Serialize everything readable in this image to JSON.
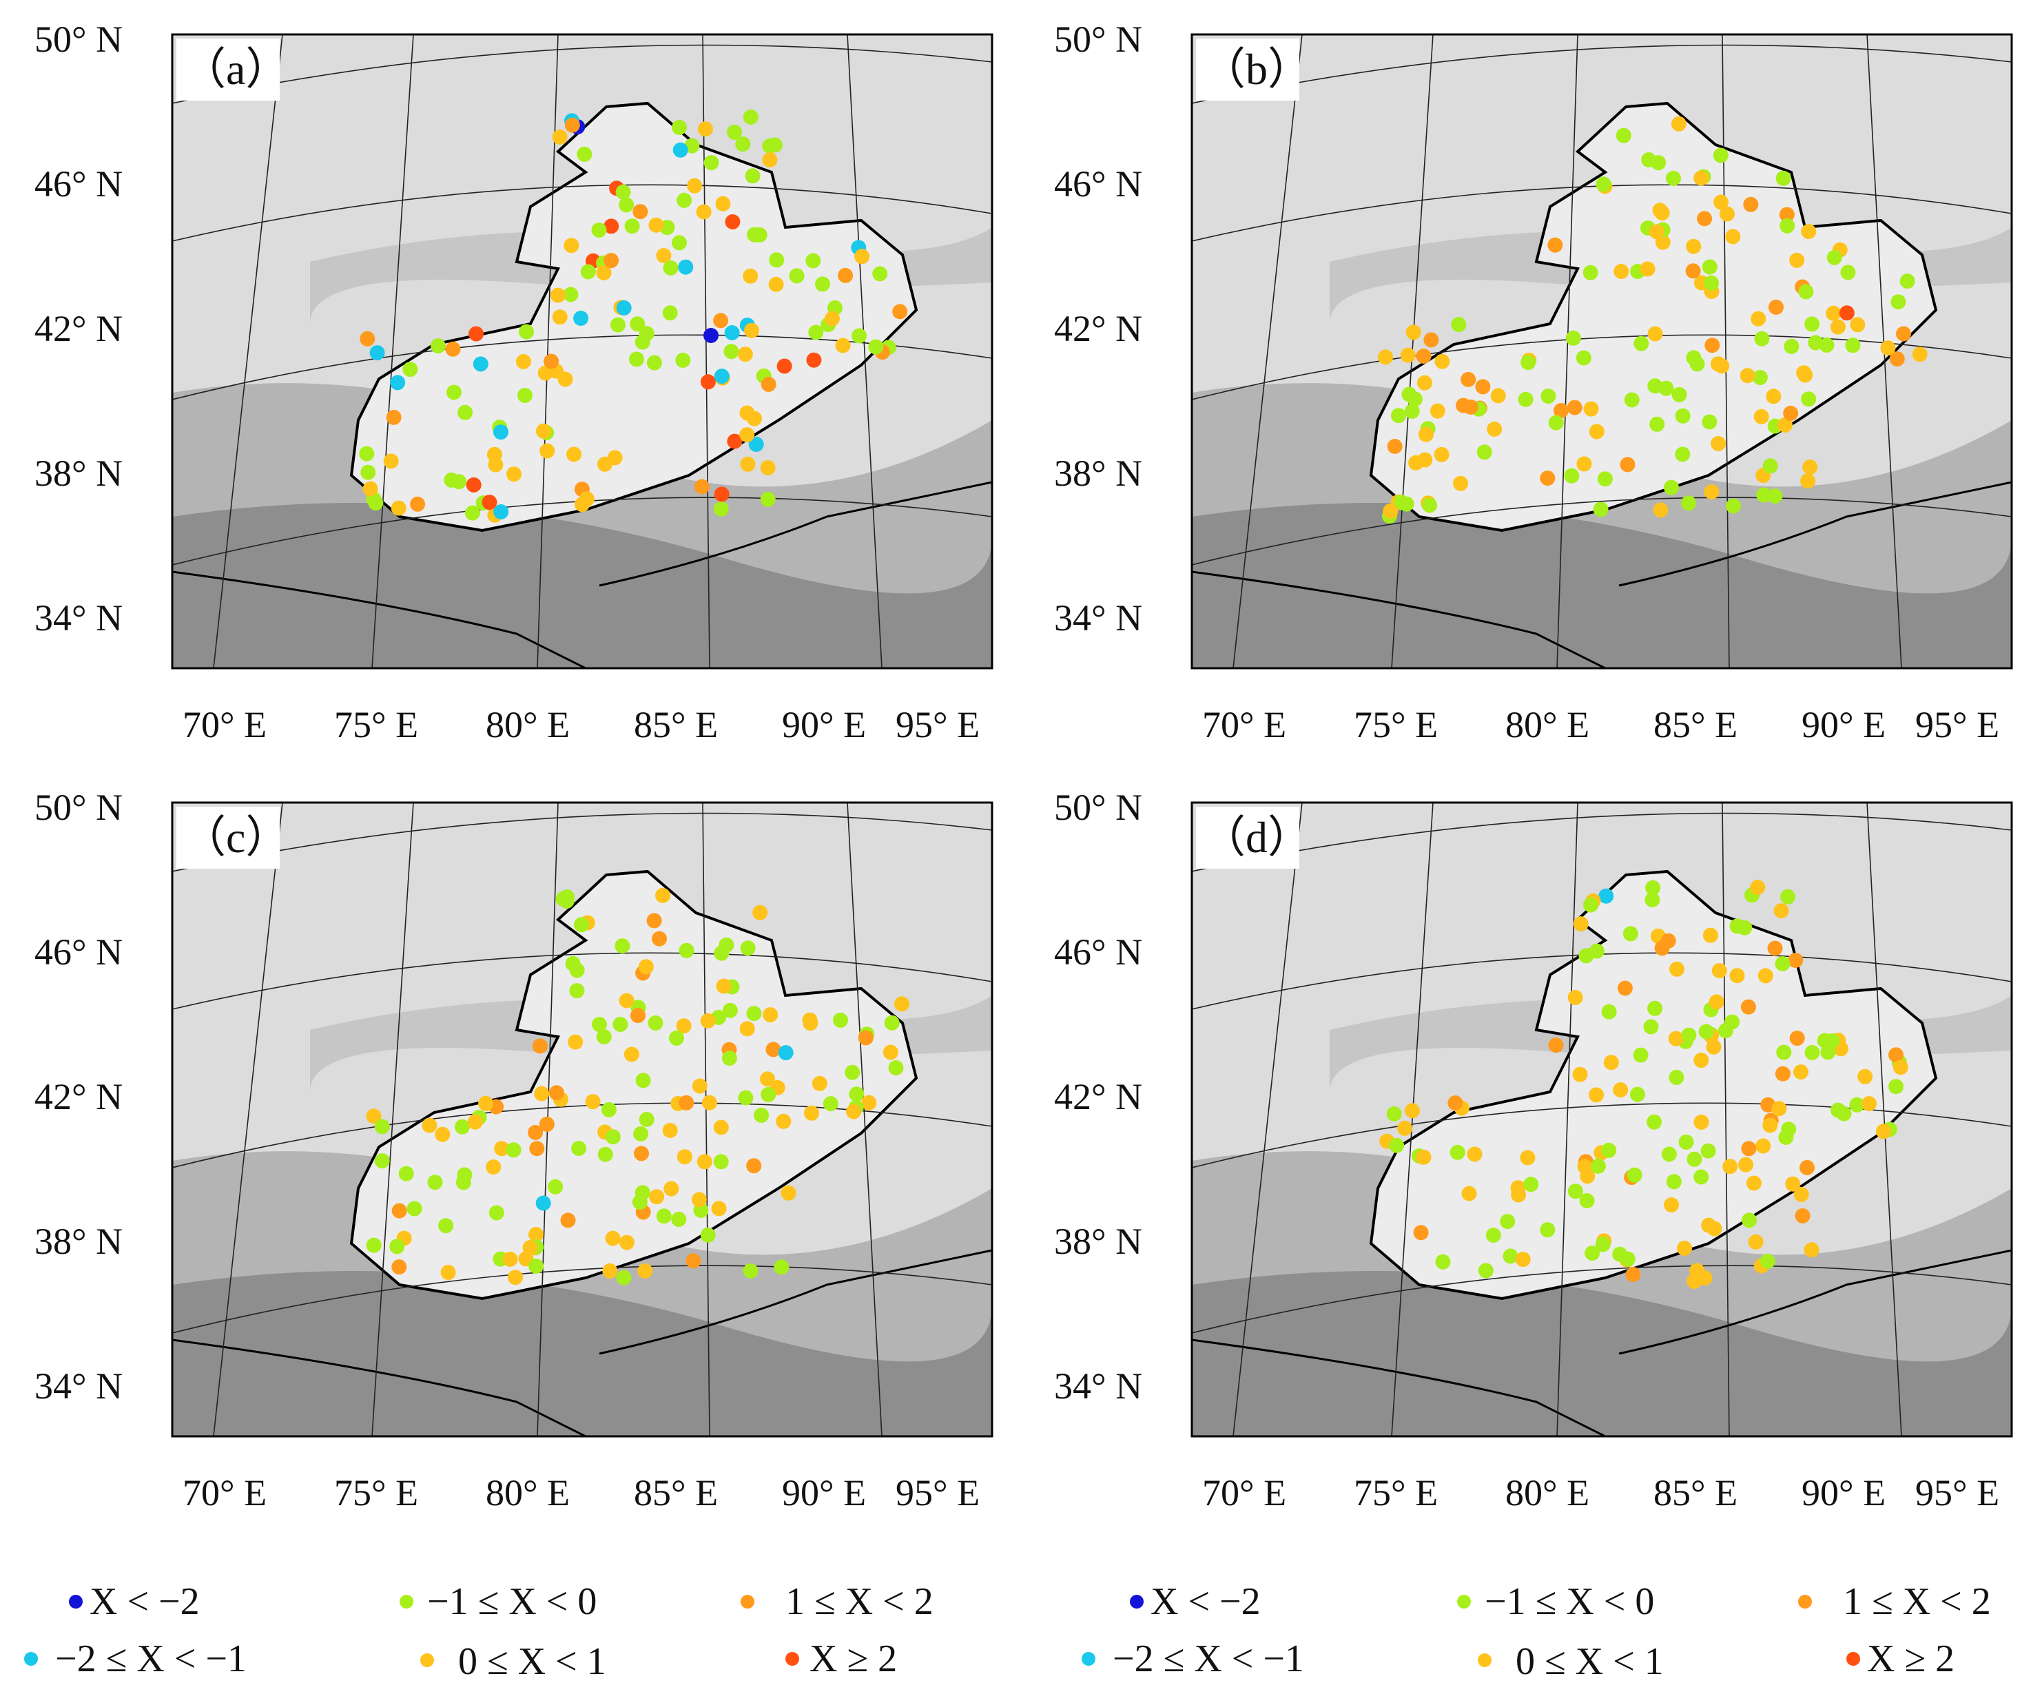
{
  "figure": {
    "panels": [
      {
        "label": "（a）",
        "id": "a"
      },
      {
        "label": "（b）",
        "id": "b"
      },
      {
        "label": "（c）",
        "id": "c"
      },
      {
        "label": "（d）",
        "id": "d"
      }
    ],
    "lat_ticks": [
      "50° N",
      "46° N",
      "42° N",
      "38° N",
      "34° N"
    ],
    "lon_ticks": [
      "70° E",
      "75° E",
      "80° E",
      "85° E",
      "90° E",
      "95° E"
    ]
  },
  "legend": {
    "left": [
      {
        "label": "X < −2",
        "color": "#1414d8"
      },
      {
        "label": "−1 ≤ X < 0",
        "color": "#a6ef1a"
      },
      {
        "label": "1 ≤ X < 2",
        "color": "#ff9a1a"
      },
      {
        "label": "−2 ≤ X <  −1",
        "color": "#19c8ea"
      },
      {
        "label": "0 ≤ X <  1",
        "color": "#ffc21a"
      },
      {
        "label": "X ≥ 2",
        "color": "#ff5010"
      }
    ],
    "right": [
      {
        "label": "X < −2",
        "color": "#1414d8"
      },
      {
        "label": "−1 ≤ X < 0",
        "color": "#a6ef1a"
      },
      {
        "label": "1 ≤ X < 2",
        "color": "#ff9a1a"
      },
      {
        "label": "−2 ≤ X <  −1",
        "color": "#19c8ea"
      },
      {
        "label": "0 ≤ X <  1",
        "color": "#ffc21a"
      },
      {
        "label": "X ≥ 2",
        "color": "#ff5010"
      }
    ]
  },
  "colors": {
    "blue": "#1414d8",
    "cyan": "#19c8ea",
    "green": "#a6ef1a",
    "yellow": "#ffc21a",
    "orange": "#ff9a1a",
    "red": "#ff5010",
    "bg_light": "#e2e2e2",
    "bg_mid": "#c8c8c8",
    "bg_dark": "#9a9a9a",
    "region_light": "#ededed"
  }
}
